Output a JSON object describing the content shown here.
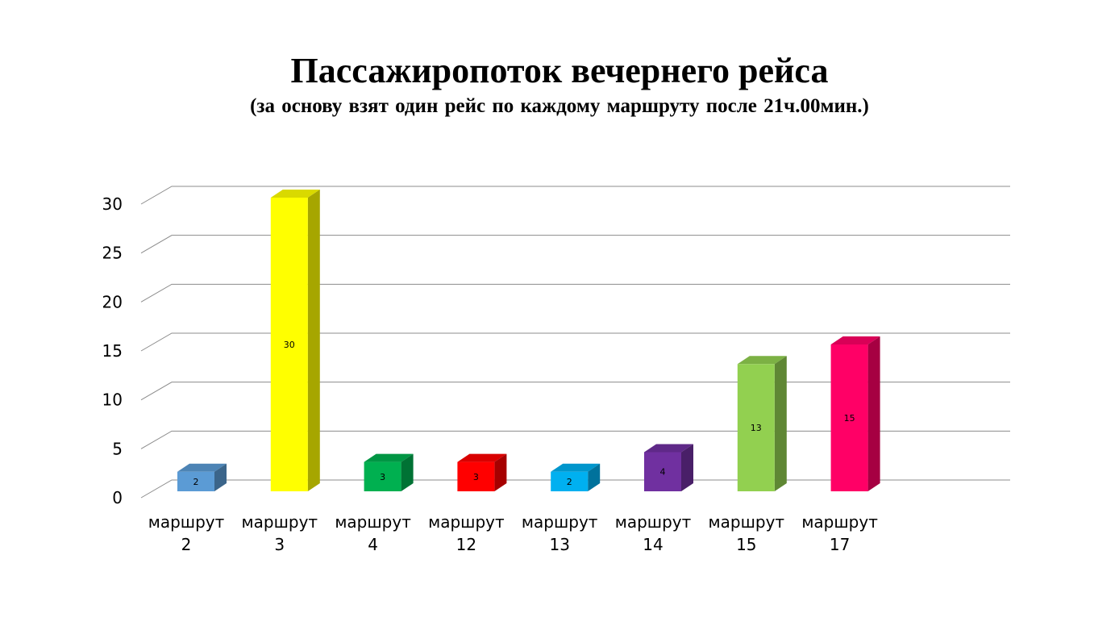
{
  "chart_data": {
    "type": "bar",
    "title": "Пассажиропоток вечернего рейса",
    "subtitle": "(за основу взят один рейс по каждому маршруту после 21ч.00мин.)",
    "xlabel": "",
    "ylabel": "",
    "categories": [
      [
        "маршрут",
        "2"
      ],
      [
        "маршрут",
        "3"
      ],
      [
        "маршрут",
        "4"
      ],
      [
        "маршрут",
        "12"
      ],
      [
        "маршрут",
        "13"
      ],
      [
        "маршрут",
        "14"
      ],
      [
        "маршрут",
        "15"
      ],
      [
        "маршрут",
        "17"
      ]
    ],
    "values": [
      2,
      30,
      3,
      3,
      2,
      4,
      13,
      15
    ],
    "data_labels": [
      "2",
      "30",
      "3",
      "3",
      "2",
      "4",
      "13",
      "15"
    ],
    "colors": [
      "#5b9bd5",
      "#ffff00",
      "#00b050",
      "#ff0000",
      "#00b0f0",
      "#7030a0",
      "#92d050",
      "#ff0066"
    ],
    "ylim": [
      0,
      30
    ],
    "yticks": [
      0,
      5,
      10,
      15,
      20,
      25,
      30
    ],
    "grid": true,
    "legend": "none",
    "style": "3d-column"
  }
}
